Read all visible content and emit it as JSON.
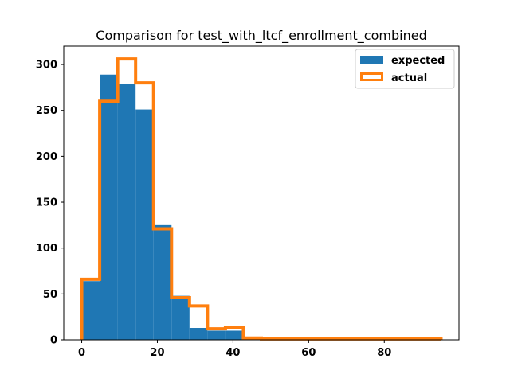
{
  "chart_data": {
    "type": "bar",
    "title": "Comparison for test_with_ltcf_enrollment_combined",
    "xlabel": "",
    "ylabel": "",
    "xlim": [
      -4.75,
      99.75
    ],
    "ylim": [
      0,
      320
    ],
    "xticks": [
      0,
      20,
      40,
      60,
      80
    ],
    "yticks": [
      0,
      50,
      100,
      150,
      200,
      250,
      300
    ],
    "bin_edges": [
      0,
      4.75,
      9.5,
      14.25,
      19,
      23.75,
      28.5,
      33.25,
      38,
      42.75,
      47.5,
      52.25,
      57,
      61.75,
      66.5,
      71.25,
      76,
      80.75,
      85.5,
      90.25,
      95
    ],
    "series": [
      {
        "name": "expected",
        "style": "filled",
        "color": "#1f77b4",
        "values": [
          64,
          289,
          279,
          251,
          125,
          48,
          13,
          10,
          10,
          2,
          1,
          1,
          0,
          0,
          0,
          0,
          0,
          0,
          0,
          0
        ]
      },
      {
        "name": "actual",
        "style": "step",
        "color": "#ff7f0e",
        "values": [
          66,
          260,
          306,
          280,
          121,
          46,
          37,
          12,
          13,
          2,
          1,
          1,
          1,
          1,
          1,
          1,
          1,
          1,
          1,
          1
        ]
      }
    ],
    "legend_position": "top-right",
    "grid": false
  }
}
